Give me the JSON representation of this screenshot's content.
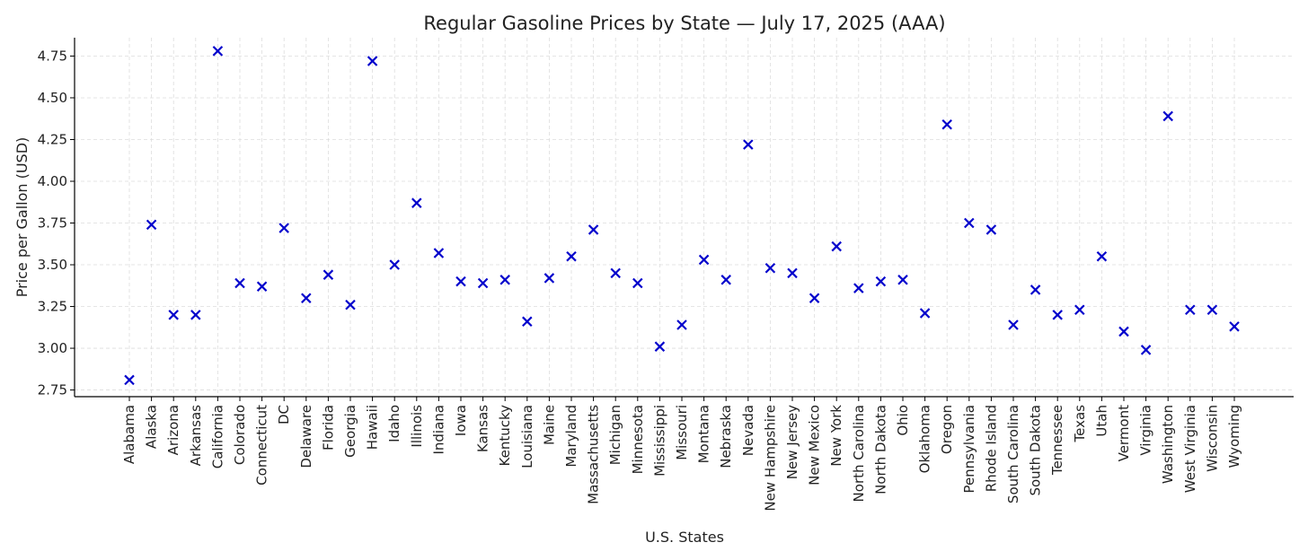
{
  "chart_data": {
    "type": "scatter",
    "title": "Regular Gasoline Prices by State — July 17, 2025 (AAA)",
    "xlabel": "U.S. States",
    "ylabel": "Price per Gallon (USD)",
    "ylim": [
      2.71,
      4.86
    ],
    "yticks": [
      "2.75",
      "3.00",
      "3.25",
      "3.50",
      "3.75",
      "4.00",
      "4.25",
      "4.50",
      "4.75"
    ],
    "grid": true,
    "marker": "x",
    "marker_color": "#0000cc",
    "categories": [
      "Alabama",
      "Alaska",
      "Arizona",
      "Arkansas",
      "California",
      "Colorado",
      "Connecticut",
      "DC",
      "Delaware",
      "Florida",
      "Georgia",
      "Hawaii",
      "Idaho",
      "Illinois",
      "Indiana",
      "Iowa",
      "Kansas",
      "Kentucky",
      "Louisiana",
      "Maine",
      "Maryland",
      "Massachusetts",
      "Michigan",
      "Minnesota",
      "Mississippi",
      "Missouri",
      "Montana",
      "Nebraska",
      "Nevada",
      "New Hampshire",
      "New Jersey",
      "New Mexico",
      "New York",
      "North Carolina",
      "North Dakota",
      "Ohio",
      "Oklahoma",
      "Oregon",
      "Pennsylvania",
      "Rhode Island",
      "South Carolina",
      "South Dakota",
      "Tennessee",
      "Texas",
      "Utah",
      "Vermont",
      "Virginia",
      "Washington",
      "West Virginia",
      "Wisconsin",
      "Wyoming"
    ],
    "values": [
      2.81,
      3.74,
      3.2,
      3.2,
      4.78,
      3.39,
      3.37,
      3.72,
      3.3,
      3.44,
      3.26,
      4.72,
      3.5,
      3.87,
      3.57,
      3.4,
      3.39,
      3.41,
      3.16,
      3.42,
      3.55,
      3.71,
      3.45,
      3.39,
      3.01,
      3.14,
      3.53,
      3.41,
      4.22,
      3.48,
      3.45,
      3.3,
      3.61,
      3.36,
      3.4,
      3.41,
      3.21,
      4.34,
      3.75,
      3.71,
      3.14,
      3.35,
      3.2,
      3.23,
      3.55,
      3.1,
      2.99,
      4.39,
      3.23,
      3.23,
      3.13
    ]
  }
}
